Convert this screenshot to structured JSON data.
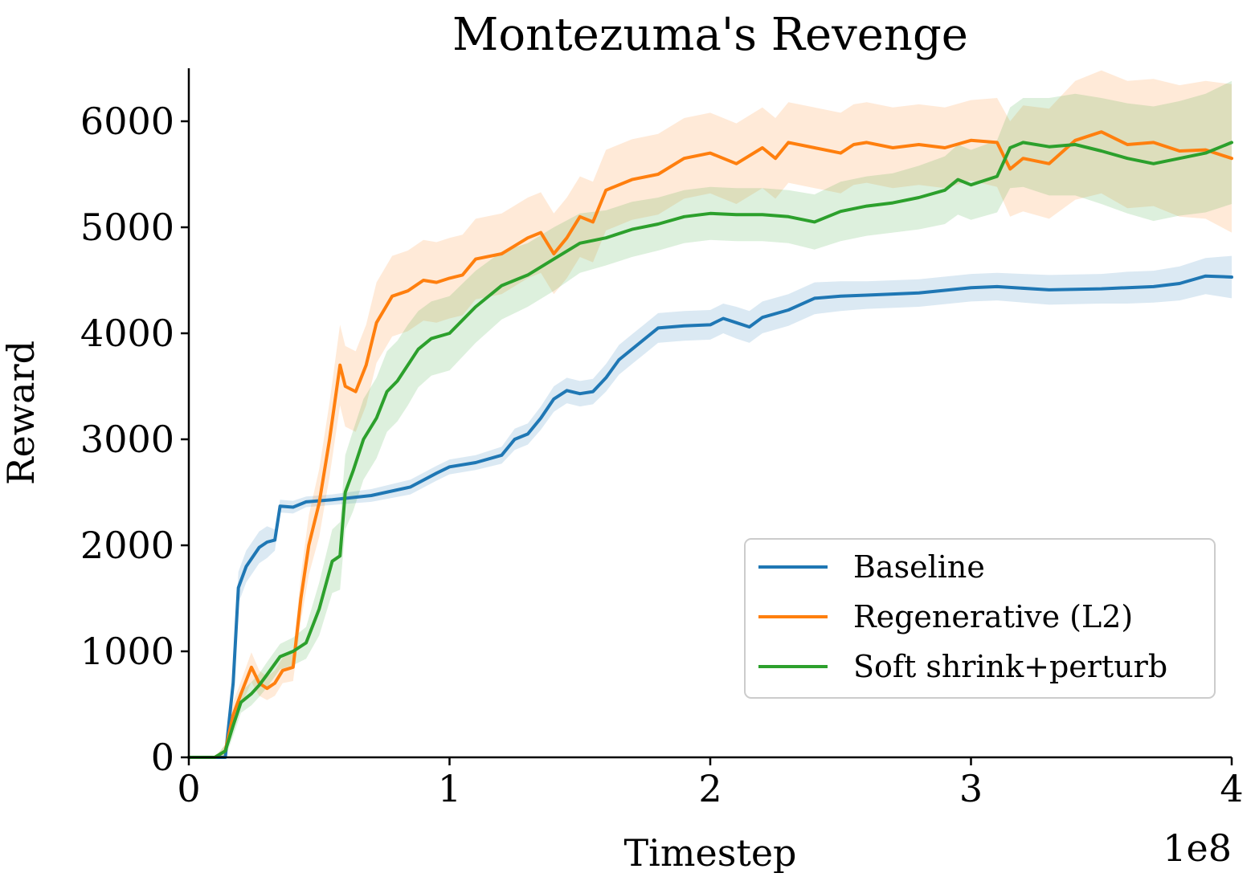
{
  "chart_data": {
    "type": "line",
    "title": "Montezuma's Revenge",
    "xlabel": "Timestep",
    "ylabel": "Reward",
    "x_offset_label": "1e8",
    "xlim": [
      0,
      4
    ],
    "ylim": [
      0,
      6500
    ],
    "xticks": [
      0,
      1,
      2,
      3,
      4
    ],
    "xtick_labels": [
      "0",
      "1",
      "2",
      "3",
      "4"
    ],
    "yticks": [
      0,
      1000,
      2000,
      3000,
      4000,
      5000,
      6000
    ],
    "ytick_labels": [
      "0",
      "1000",
      "2000",
      "3000",
      "4000",
      "5000",
      "6000"
    ],
    "grid": false,
    "legend_position": "lower-right",
    "series": [
      {
        "name": "Baseline",
        "color": "#1f77b4",
        "x": [
          0,
          0.1,
          0.14,
          0.17,
          0.19,
          0.22,
          0.27,
          0.3,
          0.33,
          0.35,
          0.4,
          0.45,
          0.55,
          0.7,
          0.85,
          0.95,
          1.0,
          1.1,
          1.2,
          1.25,
          1.3,
          1.35,
          1.4,
          1.45,
          1.5,
          1.55,
          1.6,
          1.65,
          1.7,
          1.75,
          1.8,
          1.9,
          2.0,
          2.05,
          2.1,
          2.15,
          2.2,
          2.3,
          2.4,
          2.5,
          2.6,
          2.8,
          3.0,
          3.1,
          3.3,
          3.5,
          3.6,
          3.7,
          3.8,
          3.9,
          4.0
        ],
        "y": [
          0,
          0,
          0,
          700,
          1600,
          1800,
          1980,
          2030,
          2050,
          2370,
          2360,
          2410,
          2430,
          2470,
          2550,
          2680,
          2740,
          2780,
          2850,
          3000,
          3050,
          3200,
          3380,
          3460,
          3430,
          3450,
          3580,
          3750,
          3850,
          3950,
          4050,
          4070,
          4080,
          4140,
          4100,
          4060,
          4150,
          4220,
          4330,
          4350,
          4360,
          4380,
          4430,
          4440,
          4410,
          4420,
          4430,
          4440,
          4470,
          4540,
          4530
        ],
        "band": [
          0,
          0,
          0,
          150,
          150,
          150,
          150,
          150,
          100,
          60,
          60,
          50,
          50,
          60,
          70,
          70,
          70,
          70,
          80,
          100,
          100,
          110,
          120,
          120,
          120,
          120,
          130,
          140,
          140,
          140,
          140,
          140,
          140,
          140,
          150,
          150,
          150,
          150,
          150,
          140,
          130,
          130,
          130,
          130,
          140,
          140,
          150,
          150,
          160,
          170,
          200
        ]
      },
      {
        "name": "Regenerative (L2)",
        "color": "#ff7f0e",
        "x": [
          0,
          0.1,
          0.14,
          0.17,
          0.2,
          0.24,
          0.27,
          0.3,
          0.33,
          0.36,
          0.4,
          0.43,
          0.46,
          0.5,
          0.54,
          0.58,
          0.6,
          0.64,
          0.68,
          0.72,
          0.78,
          0.84,
          0.9,
          0.95,
          1.0,
          1.05,
          1.1,
          1.2,
          1.3,
          1.35,
          1.4,
          1.45,
          1.5,
          1.55,
          1.6,
          1.7,
          1.8,
          1.9,
          2.0,
          2.1,
          2.2,
          2.25,
          2.3,
          2.4,
          2.5,
          2.55,
          2.6,
          2.7,
          2.8,
          2.9,
          3.0,
          3.1,
          3.15,
          3.2,
          3.3,
          3.4,
          3.5,
          3.6,
          3.7,
          3.8,
          3.9,
          4.0
        ],
        "y": [
          0,
          0,
          60,
          400,
          600,
          850,
          700,
          650,
          700,
          820,
          850,
          1500,
          2000,
          2400,
          3000,
          3700,
          3500,
          3450,
          3700,
          4100,
          4350,
          4400,
          4500,
          4480,
          4520,
          4550,
          4700,
          4750,
          4900,
          4950,
          4750,
          4900,
          5100,
          5050,
          5350,
          5450,
          5500,
          5650,
          5700,
          5600,
          5750,
          5650,
          5800,
          5750,
          5700,
          5780,
          5800,
          5750,
          5780,
          5750,
          5820,
          5800,
          5550,
          5650,
          5600,
          5820,
          5900,
          5780,
          5800,
          5720,
          5730,
          5650
        ],
        "band": [
          0,
          0,
          60,
          120,
          120,
          140,
          120,
          110,
          120,
          120,
          130,
          220,
          280,
          320,
          350,
          380,
          380,
          380,
          380,
          380,
          380,
          380,
          380,
          380,
          380,
          380,
          380,
          380,
          380,
          380,
          380,
          380,
          380,
          380,
          380,
          380,
          380,
          380,
          380,
          380,
          380,
          380,
          380,
          380,
          380,
          380,
          380,
          380,
          380,
          380,
          380,
          420,
          450,
          500,
          520,
          560,
          580,
          600,
          600,
          620,
          650,
          700
        ]
      },
      {
        "name": "Soft shrink+perturb",
        "color": "#2ca02c",
        "x": [
          0,
          0.1,
          0.14,
          0.17,
          0.2,
          0.24,
          0.27,
          0.3,
          0.35,
          0.4,
          0.45,
          0.5,
          0.55,
          0.58,
          0.6,
          0.63,
          0.67,
          0.72,
          0.76,
          0.8,
          0.84,
          0.88,
          0.93,
          1.0,
          1.1,
          1.2,
          1.3,
          1.4,
          1.5,
          1.6,
          1.7,
          1.8,
          1.9,
          2.0,
          2.1,
          2.2,
          2.3,
          2.4,
          2.5,
          2.6,
          2.7,
          2.8,
          2.9,
          2.95,
          3.0,
          3.1,
          3.15,
          3.2,
          3.3,
          3.4,
          3.5,
          3.6,
          3.7,
          3.8,
          3.9,
          4.0
        ],
        "y": [
          0,
          0,
          60,
          300,
          520,
          600,
          680,
          780,
          950,
          1000,
          1080,
          1400,
          1850,
          1900,
          2500,
          2700,
          3000,
          3200,
          3450,
          3550,
          3700,
          3850,
          3950,
          4000,
          4250,
          4450,
          4550,
          4700,
          4850,
          4900,
          4980,
          5030,
          5100,
          5130,
          5120,
          5120,
          5100,
          5050,
          5150,
          5200,
          5230,
          5280,
          5350,
          5450,
          5400,
          5480,
          5750,
          5800,
          5760,
          5780,
          5720,
          5650,
          5600,
          5650,
          5700,
          5800
        ],
        "band": [
          0,
          0,
          60,
          100,
          100,
          110,
          110,
          120,
          120,
          130,
          150,
          250,
          300,
          320,
          350,
          380,
          380,
          380,
          380,
          380,
          380,
          360,
          350,
          350,
          340,
          320,
          300,
          300,
          280,
          260,
          260,
          250,
          250,
          250,
          250,
          250,
          250,
          260,
          280,
          280,
          280,
          300,
          320,
          330,
          330,
          340,
          380,
          420,
          460,
          480,
          500,
          520,
          540,
          540,
          560,
          580
        ]
      }
    ]
  }
}
